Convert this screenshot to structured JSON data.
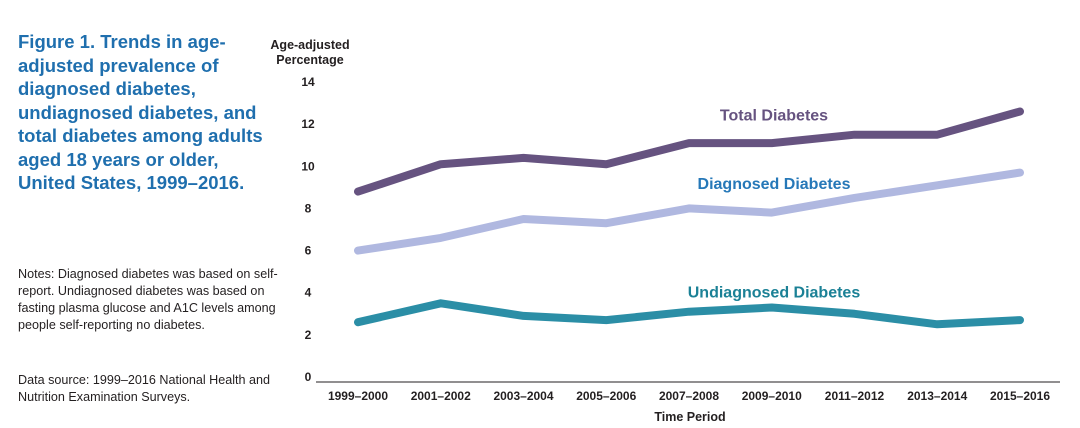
{
  "figure": {
    "title": "Figure 1. Trends in age-adjusted prevalence of diagnosed diabetes, undiagnosed diabetes, and total diabetes among adults aged 18 years or older, United States, 1999–2016.",
    "notes": "Notes: Diagnosed diabetes was based on self-report. Undiagnosed diabetes was based on fasting plasma glucose and A1C levels among people self-reporting no diabetes.",
    "source": "Data source: 1999–2016 National Health and Nutrition Examination Surveys."
  },
  "colors": {
    "title": "#1f6fae",
    "total": "#665380",
    "diagnosed": "#b0b8e0",
    "undiagnosed": "#2b8ea6",
    "diagnosed_label": "#2678b8",
    "undiagnosed_label": "#1b8196"
  },
  "chart_data": {
    "type": "line",
    "title": "",
    "xlabel": "Time Period",
    "ylabel": "Age-adjusted Percentage",
    "ylabel_lines": [
      "Age-adjusted",
      "Percentage"
    ],
    "ylim": [
      0,
      14
    ],
    "yticks": [
      0,
      2,
      4,
      6,
      8,
      10,
      12,
      14
    ],
    "grid": false,
    "categories": [
      "1999–2000",
      "2001–2002",
      "2003–2004",
      "2005–2006",
      "2007–2008",
      "2009–2010",
      "2011–2012",
      "2013–2014",
      "2015–2016"
    ],
    "series": [
      {
        "name": "Total Diabetes",
        "color_key": "total",
        "label_color_key": "total",
        "values": [
          8.8,
          10.1,
          10.4,
          10.1,
          11.1,
          11.1,
          11.5,
          11.5,
          12.6
        ]
      },
      {
        "name": "Diagnosed Diabetes",
        "color_key": "diagnosed",
        "label_color_key": "diagnosed_label",
        "values": [
          6.0,
          6.6,
          7.5,
          7.3,
          8.0,
          7.8,
          8.5,
          9.1,
          9.7
        ]
      },
      {
        "name": "Undiagnosed Diabetes",
        "color_key": "undiagnosed",
        "label_color_key": "undiagnosed_label",
        "values": [
          2.6,
          3.5,
          2.9,
          2.7,
          3.1,
          3.3,
          3.0,
          2.5,
          2.7
        ]
      }
    ]
  }
}
